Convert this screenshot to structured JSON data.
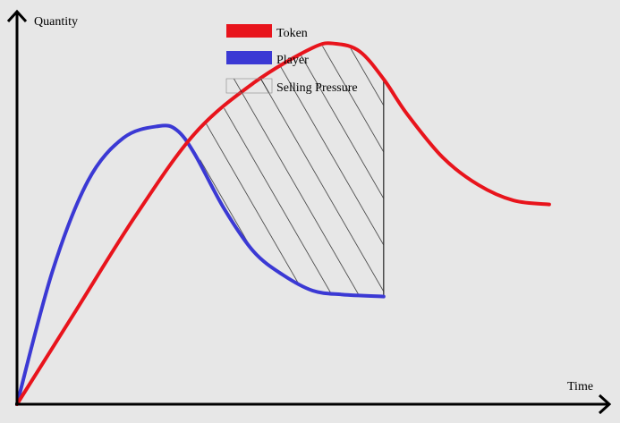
{
  "chart_data": {
    "type": "line",
    "xlabel": "Time",
    "ylabel": "Quantity",
    "legend_position": "top-center",
    "grid": false,
    "xlim": [
      0,
      100
    ],
    "ylim": [
      0,
      100
    ],
    "series": [
      {
        "name": "Token",
        "color": "#e8141c",
        "x": [
          0,
          10,
          20,
          30,
          40,
          50,
          54,
          58,
          62,
          66,
          72,
          78,
          84,
          90
        ],
        "y": [
          0,
          24,
          48,
          69,
          82,
          91,
          92,
          90,
          83,
          74,
          63,
          56,
          52,
          51
        ]
      },
      {
        "name": "Player",
        "color": "#3b39d4",
        "x": [
          0,
          6,
          12,
          18,
          24,
          27,
          30,
          35,
          40,
          45,
          50,
          55,
          62
        ],
        "y": [
          0,
          34,
          57,
          68,
          71,
          70,
          64,
          50,
          39,
          33,
          29,
          28,
          27.5
        ]
      }
    ],
    "shaded_region": {
      "name": "Selling Pressure",
      "pattern": "diagonal-hatch",
      "between": [
        "Token",
        "Player"
      ],
      "x_range": [
        31,
        62
      ]
    }
  }
}
